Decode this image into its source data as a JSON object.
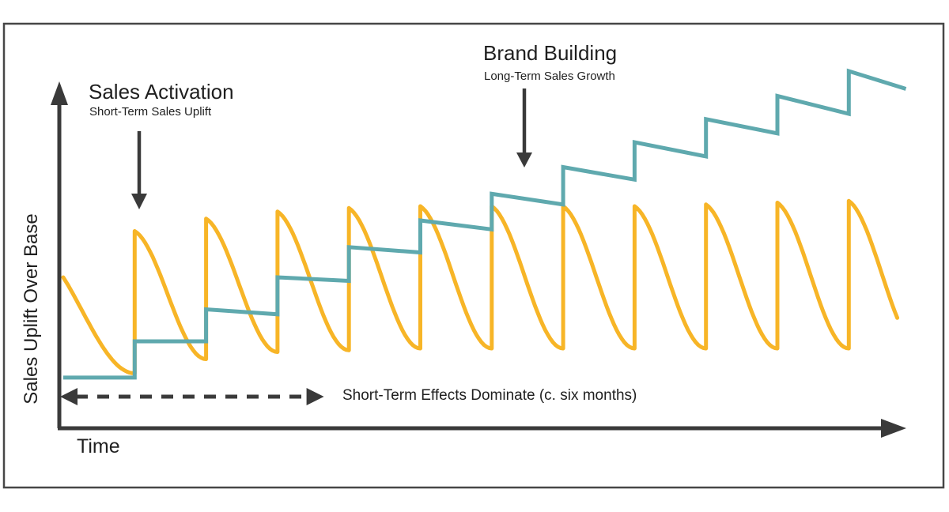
{
  "annotations": {
    "sales_activation": {
      "title": "Sales Activation",
      "subtitle": "Short-Term Sales Uplift"
    },
    "brand_building": {
      "title": "Brand Building",
      "subtitle": "Long-Term Sales Growth"
    },
    "short_term_note": "Short-Term Effects Dominate (c. six months)"
  },
  "axes": {
    "x_label": "Time",
    "y_label": "Sales Uplift Over Base"
  },
  "colors": {
    "sales_activation": "#F7B527",
    "brand_building": "#5FA9AE",
    "ink": "#3A3A3A",
    "text": "#1F1F1F",
    "frame": "#474747",
    "background": "#FFFFFF"
  },
  "chart_data": {
    "type": "line",
    "title": "",
    "xlabel": "Time",
    "ylabel": "Sales Uplift Over Base",
    "xlim": [
      0,
      12
    ],
    "ylim": [
      0,
      110
    ],
    "grid": false,
    "legend": "none (series identified by arrow annotations)",
    "series": [
      {
        "name": "Sales Activation (Short-Term Sales Uplift)",
        "color": "#F7B527",
        "shape": "sawtooth-decay",
        "start": {
          "t": 0,
          "v": 42
        },
        "spike_times": [
          1,
          2,
          3,
          4,
          5,
          6,
          7,
          8,
          9,
          10,
          11
        ],
        "peaks": [
          55,
          58.5,
          60.5,
          61.5,
          62,
          62,
          62,
          62,
          62.5,
          63,
          63.5
        ],
        "troughs": [
          15,
          19,
          21,
          21.5,
          22,
          22,
          22,
          22,
          22,
          22,
          22
        ],
        "end": {
          "t": 11.7,
          "v": 30.5
        }
      },
      {
        "name": "Brand Building (Long-Term Sales Growth)",
        "color": "#5FA9AE",
        "shape": "step-growth",
        "steps": [
          {
            "t": 0,
            "from": 13.8,
            "to": 13.8
          },
          {
            "t": 1,
            "from": 24,
            "to": 24
          },
          {
            "t": 2,
            "from": 33,
            "to": 31.6
          },
          {
            "t": 3,
            "from": 42,
            "to": 41
          },
          {
            "t": 4,
            "from": 50.5,
            "to": 49
          },
          {
            "t": 5,
            "from": 58,
            "to": 55.5
          },
          {
            "t": 6,
            "from": 65.5,
            "to": 62.5
          },
          {
            "t": 7,
            "from": 73,
            "to": 69.5
          },
          {
            "t": 8,
            "from": 80,
            "to": 76
          },
          {
            "t": 9,
            "from": 86.5,
            "to": 82.5
          },
          {
            "t": 10,
            "from": 93,
            "to": 88
          },
          {
            "t": 11,
            "from": 100,
            "to": 95
          }
        ],
        "end_t": 11.8
      }
    ],
    "annotations": {
      "short_term_window": {
        "from_t": 0,
        "to_t": 3.65,
        "label": "Short-Term Effects Dominate (c. six months)"
      }
    }
  }
}
